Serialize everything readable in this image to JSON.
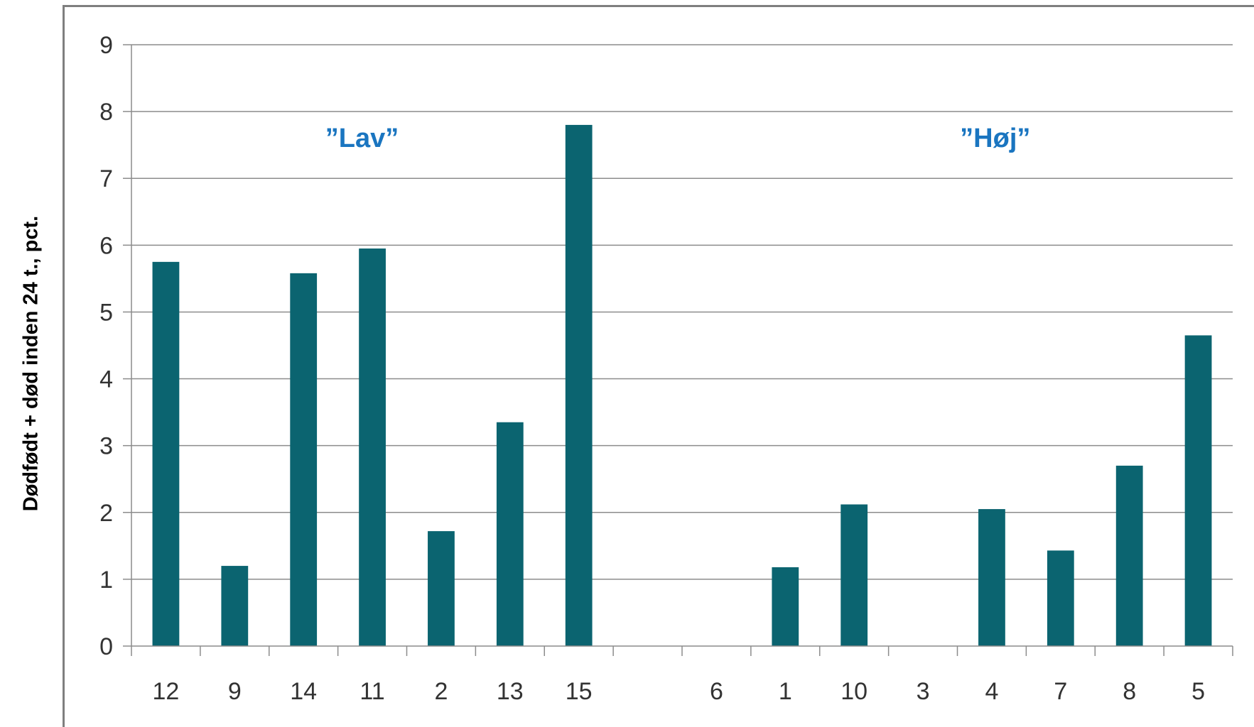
{
  "chart_data": {
    "type": "bar",
    "ylabel": "Dødfødt + død inden 24 t., pct.",
    "xlabel": "",
    "ylim": [
      0,
      9
    ],
    "yticks": [
      "0",
      "1",
      "2",
      "3",
      "4",
      "5",
      "6",
      "7",
      "8",
      "9"
    ],
    "grid": true,
    "categories": [
      "12",
      "9",
      "14",
      "11",
      "2",
      "13",
      "15",
      "",
      "6",
      "1",
      "10",
      "3",
      "4",
      "7",
      "8",
      "5"
    ],
    "values": [
      5.75,
      1.2,
      5.58,
      5.95,
      1.72,
      3.35,
      7.8,
      0,
      0,
      1.18,
      2.12,
      0,
      2.05,
      1.43,
      2.7,
      4.65
    ],
    "bar_color": "#0b6470",
    "annotations": [
      {
        "text": "”Lav”",
        "category_index": 3,
        "y": 7.6
      },
      {
        "text": "”Høj”",
        "category_index": 12.2,
        "y": 7.6
      }
    ]
  }
}
